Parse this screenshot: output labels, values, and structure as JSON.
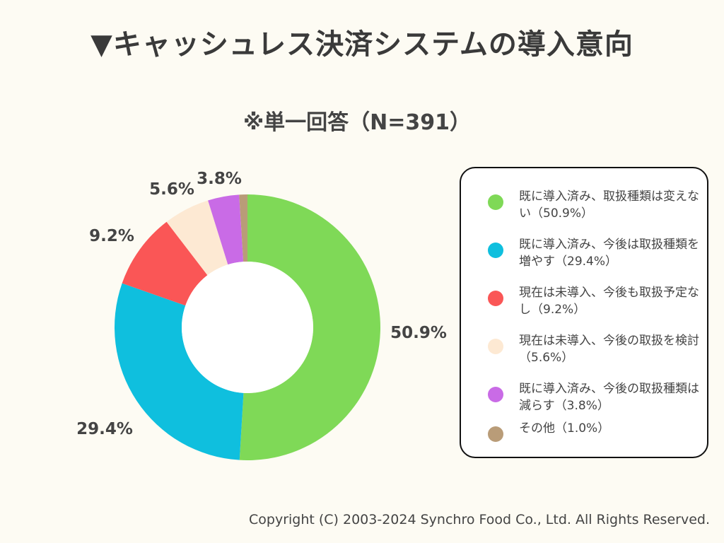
{
  "title": "▼キャッシュレス決済システムの導入意向",
  "subtitle": "※単一回答（N=391）",
  "footer": "Copyright (C) 2003-2024  Synchro Food Co., Ltd. All Rights Reserved.",
  "chart_data": {
    "type": "pie",
    "variant": "donut",
    "title": "▼キャッシュレス決済システムの導入意向",
    "subtitle": "※単一回答（N=391）",
    "legend_position": "right",
    "slices": [
      {
        "label": "既に導入済み、取扱種類は変えない（50.9%）",
        "value": 50.9,
        "display": "50.9%",
        "color": "#7fd957"
      },
      {
        "label": "既に導入済み、今後は取扱種類を増やす（29.4%）",
        "value": 29.4,
        "display": "29.4%",
        "color": "#0fbfde"
      },
      {
        "label": "現在は未導入、今後も取扱予定なし（9.2%）",
        "value": 9.2,
        "display": "9.2%",
        "color": "#fa5656"
      },
      {
        "label": "現在は未導入、今後の取扱を検討（5.6%）",
        "value": 5.6,
        "display": "5.6%",
        "color": "#fde9d3"
      },
      {
        "label": "既に導入済み、今後の取扱種類は減らす（3.8%）",
        "value": 3.8,
        "display": "3.8%",
        "color": "#c96be6"
      },
      {
        "label": "その他（1.0%）",
        "value": 1.0,
        "display": "",
        "color": "#b99c78"
      }
    ]
  }
}
